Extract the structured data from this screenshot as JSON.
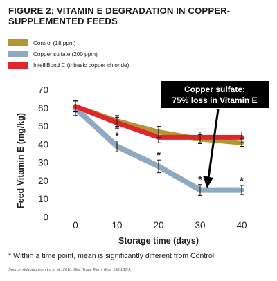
{
  "header": {
    "title_line1": "FIGURE 2: VITAMIN E DEGRADATION IN COPPER-",
    "title_line2": "SUPPLEMENTED FEEDS"
  },
  "legend": [
    {
      "label": "Control (18 ppm)",
      "color": "#b39635"
    },
    {
      "label": "Copper sulfate (200 ppm)",
      "color": "#8fa9c0"
    },
    {
      "label": "IntelliBond C (tribasic copper chloride)",
      "color": "#e0262c"
    }
  ],
  "callout": {
    "line1": "Copper sulfate:",
    "line2": "75% loss in Vitamin E"
  },
  "footnote": "* Within a time point, mean is significantly different from Control.",
  "source": "Source: Adapted from Lu et al., 2010. Biol. Trace Elem. Res. 138:181-9.",
  "chart_data": {
    "type": "line",
    "xlabel": "Storage time (days)",
    "ylabel": "Feed Vitamin E (mg/kg)",
    "x": [
      0,
      10,
      20,
      30,
      40
    ],
    "xlim": [
      0,
      40
    ],
    "ylim": [
      0,
      70
    ],
    "x_ticks": [
      "0",
      "10",
      "20",
      "30",
      "40"
    ],
    "y_ticks": [
      "0",
      "10",
      "20",
      "30",
      "40",
      "50",
      "60",
      "70"
    ],
    "series": [
      {
        "name": "Control (18 ppm)",
        "color": "#b39635",
        "values": [
          61,
          53,
          47,
          43,
          41
        ],
        "errors": [
          3,
          3,
          3,
          2.5,
          2
        ]
      },
      {
        "name": "Copper sulfate (200 ppm)",
        "color": "#8fa9c0",
        "values": [
          60,
          39,
          28,
          15,
          15
        ],
        "errors": [
          4,
          3,
          3.5,
          3,
          2.5
        ]
      },
      {
        "name": "IntelliBond C (tribasic copper chloride)",
        "color": "#e0262c",
        "values": [
          61,
          52,
          44,
          44,
          44
        ],
        "errors": [
          3,
          3,
          3,
          3,
          3
        ]
      }
    ],
    "significant_markers": [
      {
        "series": "Copper sulfate (200 ppm)",
        "x": [
          10,
          20,
          30,
          40
        ],
        "symbol": "*"
      }
    ]
  }
}
